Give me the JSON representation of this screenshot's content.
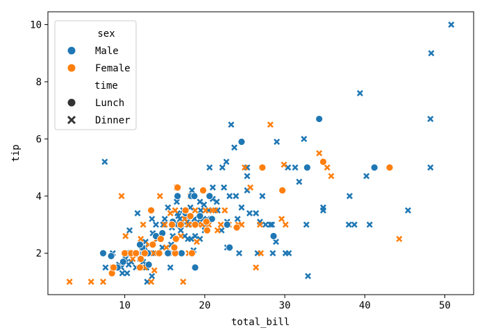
{
  "chart_data": {
    "type": "scatter",
    "xlabel": "total_bill",
    "ylabel": "tip",
    "xlim": [
      0.4,
      53.6
    ],
    "ylim": [
      0.55,
      10.45
    ],
    "xticks": [
      10,
      20,
      30,
      40,
      50
    ],
    "yticks": [
      2,
      4,
      6,
      8,
      10
    ],
    "grid": false,
    "legend": {
      "placement": "top-left",
      "hue_title": "sex",
      "style_title": "time",
      "entries": [
        {
          "key": "Male",
          "label": "Male",
          "color": "#1f77b4"
        },
        {
          "key": "Female",
          "label": "Female",
          "color": "#ff7f0e"
        }
      ],
      "markers": [
        {
          "key": "Lunch",
          "label": "Lunch",
          "marker": "circle"
        },
        {
          "key": "Dinner",
          "label": "Dinner",
          "marker": "x"
        }
      ]
    },
    "series": [
      {
        "name": "Male · Dinner",
        "sex": "Male",
        "time": "Dinner",
        "color": "#1f77b4",
        "marker": "x",
        "points": [
          [
            50.8,
            10
          ],
          [
            48.3,
            9
          ],
          [
            48.2,
            6.7
          ],
          [
            48.2,
            5
          ],
          [
            39.4,
            7.6
          ],
          [
            45.4,
            3.5
          ],
          [
            40.2,
            4.7
          ],
          [
            38.1,
            4
          ],
          [
            38.0,
            3
          ],
          [
            38.7,
            3
          ],
          [
            40.6,
            3
          ],
          [
            34.8,
            3.6
          ],
          [
            34.8,
            3.5
          ],
          [
            32.7,
            3
          ],
          [
            31.8,
            4.5
          ],
          [
            32.4,
            6
          ],
          [
            32.9,
            1.2
          ],
          [
            30.1,
            2
          ],
          [
            30.5,
            2
          ],
          [
            31.3,
            5
          ],
          [
            30.4,
            5
          ],
          [
            29.0,
            5.9
          ],
          [
            28.4,
            3
          ],
          [
            28.2,
            3
          ],
          [
            28.5,
            2
          ],
          [
            27.2,
            4
          ],
          [
            26.9,
            3.1
          ],
          [
            26.4,
            3.4
          ],
          [
            25.3,
            4.7
          ],
          [
            25.3,
            5
          ],
          [
            25.3,
            4.2
          ],
          [
            24.6,
            3.6
          ],
          [
            24.1,
            3.2
          ],
          [
            23.7,
            5.7
          ],
          [
            23.3,
            6.5
          ],
          [
            23.1,
            4
          ],
          [
            22.8,
            3.1
          ],
          [
            22.8,
            2.2
          ],
          [
            22.7,
            5.2
          ],
          [
            22.4,
            4.3
          ],
          [
            22.2,
            5
          ],
          [
            21.6,
            3.5
          ],
          [
            21.5,
            3.8
          ],
          [
            21.0,
            4.3
          ],
          [
            20.6,
            5
          ],
          [
            20.5,
            3.5
          ],
          [
            20.3,
            3.2
          ],
          [
            20.1,
            3
          ],
          [
            20.0,
            2.8
          ],
          [
            19.8,
            3.2
          ],
          [
            19.5,
            3.5
          ],
          [
            19.4,
            2.5
          ],
          [
            19.4,
            3.8
          ],
          [
            18.8,
            2.6
          ],
          [
            18.7,
            3.2
          ],
          [
            18.4,
            4.2
          ],
          [
            18.3,
            2.5
          ],
          [
            18.2,
            3.6
          ],
          [
            18.0,
            3
          ],
          [
            17.9,
            2.5
          ],
          [
            17.8,
            3.1
          ],
          [
            17.5,
            2.6
          ],
          [
            17.3,
            3.5
          ],
          [
            17.1,
            3
          ],
          [
            16.9,
            3.2
          ],
          [
            16.7,
            3.3
          ],
          [
            16.6,
            3.4
          ],
          [
            16.5,
            3.8
          ],
          [
            16.3,
            3
          ],
          [
            16.0,
            2.6
          ],
          [
            15.8,
            2.3
          ],
          [
            15.5,
            2
          ],
          [
            15.4,
            3.6
          ],
          [
            15.0,
            3.2
          ],
          [
            14.8,
            3
          ],
          [
            14.5,
            2.5
          ],
          [
            14.3,
            2
          ],
          [
            14.1,
            2.5
          ],
          [
            13.9,
            3
          ],
          [
            13.8,
            2
          ],
          [
            13.5,
            2.7
          ],
          [
            13.4,
            3.2
          ],
          [
            13.0,
            2
          ],
          [
            12.9,
            1.6
          ],
          [
            12.7,
            1.5
          ],
          [
            12.5,
            2.2
          ],
          [
            12.3,
            1.7
          ],
          [
            12.0,
            2
          ],
          [
            11.6,
            3.4
          ],
          [
            11.4,
            1.5
          ],
          [
            11.2,
            2
          ],
          [
            10.8,
            1.7
          ],
          [
            10.6,
            2.8
          ],
          [
            10.3,
            1.3
          ],
          [
            10.1,
            1.8
          ],
          [
            9.7,
            1.3
          ],
          [
            9.6,
            1.5
          ],
          [
            9.3,
            1.6
          ],
          [
            8.8,
            1.5
          ],
          [
            7.5,
            5.2
          ],
          [
            7.6,
            1.5
          ],
          [
            8.5,
            2
          ],
          [
            13.4,
            1.2
          ],
          [
            12.8,
            1
          ],
          [
            15.7,
            1.5
          ],
          [
            17.0,
            2.8
          ],
          [
            19.1,
            3.1
          ],
          [
            21.0,
            3.9
          ],
          [
            24.3,
            2
          ],
          [
            26.6,
            2
          ],
          [
            11.9,
            1.8
          ],
          [
            14.7,
            2.2
          ],
          [
            16.3,
            2
          ],
          [
            18.6,
            2.1
          ],
          [
            22.1,
            2.8
          ],
          [
            25.6,
            3.4
          ],
          [
            28.9,
            2.4
          ],
          [
            10.5,
            1.6
          ],
          [
            12.6,
            2.4
          ],
          [
            14.0,
            2.6
          ],
          [
            15.9,
            2.9
          ],
          [
            17.6,
            3.3
          ],
          [
            19.9,
            3.7
          ],
          [
            23.9,
            4.0
          ],
          [
            27.6,
            3.0
          ]
        ]
      },
      {
        "name": "Female · Dinner",
        "sex": "Female",
        "time": "Dinner",
        "color": "#ff7f0e",
        "marker": "x",
        "points": [
          [
            3.1,
            1
          ],
          [
            5.8,
            1
          ],
          [
            7.3,
            1
          ],
          [
            8.5,
            1.5
          ],
          [
            9.6,
            4
          ],
          [
            10.1,
            2.6
          ],
          [
            10.3,
            2
          ],
          [
            11.0,
            1.8
          ],
          [
            11.6,
            2
          ],
          [
            12.0,
            2.5
          ],
          [
            12.5,
            1.5
          ],
          [
            13.0,
            2.3
          ],
          [
            13.3,
            1
          ],
          [
            13.7,
            1.4
          ],
          [
            14.0,
            2.5
          ],
          [
            14.4,
            4
          ],
          [
            15.0,
            3
          ],
          [
            15.4,
            2
          ],
          [
            15.7,
            3.4
          ],
          [
            16.0,
            3
          ],
          [
            16.3,
            3.5
          ],
          [
            16.5,
            4.3
          ],
          [
            16.9,
            3
          ],
          [
            17.3,
            1
          ],
          [
            17.5,
            3.2
          ],
          [
            17.9,
            3
          ],
          [
            18.2,
            4
          ],
          [
            18.5,
            3
          ],
          [
            18.8,
            3.5
          ],
          [
            19.2,
            3
          ],
          [
            19.7,
            3
          ],
          [
            20.1,
            3.5
          ],
          [
            20.5,
            3
          ],
          [
            20.9,
            3.5
          ],
          [
            21.3,
            3.5
          ],
          [
            22.0,
            3
          ],
          [
            22.5,
            3.5
          ],
          [
            23.0,
            3
          ],
          [
            24.2,
            3
          ],
          [
            24.6,
            3
          ],
          [
            25.0,
            5
          ],
          [
            25.7,
            4.3
          ],
          [
            26.4,
            1.5
          ],
          [
            26.9,
            3
          ],
          [
            27.0,
            2
          ],
          [
            28.2,
            6.5
          ],
          [
            29.6,
            3.2
          ],
          [
            29.9,
            5.1
          ],
          [
            30.1,
            3
          ],
          [
            34.3,
            5.5
          ],
          [
            35.3,
            5
          ],
          [
            35.8,
            4.7
          ],
          [
            44.3,
            2.5
          ],
          [
            15.2,
            2.2
          ],
          [
            17.0,
            2.6
          ],
          [
            19.0,
            2.4
          ],
          [
            21.6,
            2.8
          ],
          [
            13.6,
            2.0
          ],
          [
            12.3,
            3.0
          ],
          [
            18.0,
            2.0
          ]
        ]
      },
      {
        "name": "Male · Lunch",
        "sex": "Male",
        "time": "Lunch",
        "color": "#1f77b4",
        "marker": "circle",
        "points": [
          [
            7.3,
            2
          ],
          [
            8.3,
            1.9
          ],
          [
            9.1,
            1.5
          ],
          [
            9.8,
            1.7
          ],
          [
            10.5,
            2
          ],
          [
            11.5,
            2
          ],
          [
            12.2,
            2.2
          ],
          [
            12.9,
            2
          ],
          [
            13.0,
            1.6
          ],
          [
            15.4,
            2
          ],
          [
            16.6,
            4
          ],
          [
            17.6,
            3.4
          ],
          [
            18.3,
            4
          ],
          [
            18.7,
            4
          ],
          [
            18.8,
            1.5
          ],
          [
            20.6,
            4
          ],
          [
            20.9,
            3.2
          ],
          [
            22.8,
            3
          ],
          [
            23.1,
            2.2
          ],
          [
            24.6,
            5.9
          ],
          [
            28.6,
            2.6
          ],
          [
            32.8,
            5
          ],
          [
            34.3,
            6.7
          ],
          [
            41.2,
            5
          ],
          [
            16.0,
            3.1
          ],
          [
            19.4,
            3.3
          ],
          [
            11.9,
            2.3
          ],
          [
            13.9,
            2.6
          ],
          [
            14.7,
            2.7
          ],
          [
            17.1,
            2.0
          ]
        ]
      },
      {
        "name": "Female · Lunch",
        "sex": "Female",
        "time": "Lunch",
        "color": "#ff7f0e",
        "marker": "circle",
        "points": [
          [
            8.4,
            1.3
          ],
          [
            8.6,
            1.5
          ],
          [
            10.0,
            2
          ],
          [
            10.8,
            2
          ],
          [
            11.4,
            2
          ],
          [
            12.0,
            1.8
          ],
          [
            12.5,
            2
          ],
          [
            13.3,
            3.5
          ],
          [
            14.5,
            2.5
          ],
          [
            15.9,
            3
          ],
          [
            16.3,
            2
          ],
          [
            16.4,
            2.5
          ],
          [
            17.0,
            3
          ],
          [
            17.6,
            3.5
          ],
          [
            18.2,
            3.3
          ],
          [
            18.4,
            2
          ],
          [
            19.8,
            4.2
          ],
          [
            20.3,
            2.8
          ],
          [
            24.0,
            2.9
          ],
          [
            27.2,
            5
          ],
          [
            29.7,
            4.2
          ],
          [
            34.8,
            5.2
          ],
          [
            43.1,
            5
          ],
          [
            16.6,
            4.3
          ],
          [
            14.3,
            2.0
          ],
          [
            11.9,
            1.5
          ],
          [
            20.2,
            3.1
          ],
          [
            18.8,
            3.0
          ],
          [
            16.2,
            2.2
          ],
          [
            13.5,
            2.3
          ]
        ]
      }
    ]
  }
}
